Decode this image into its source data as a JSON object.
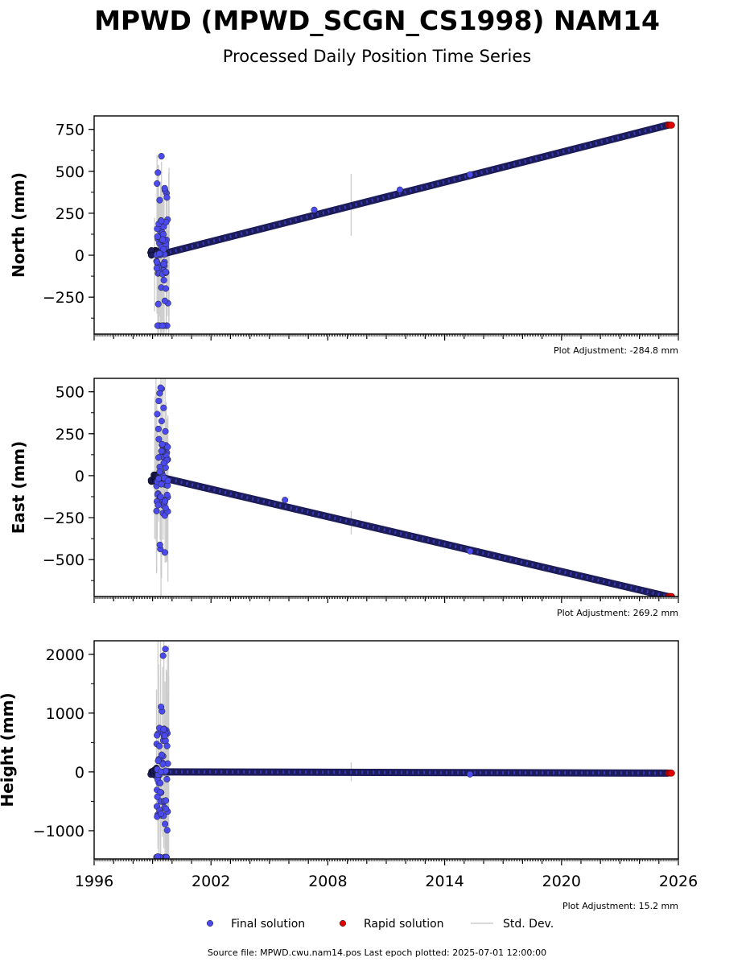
{
  "chart_data": {
    "type": "scatter",
    "title": "MPWD (MPWD_SCGN_CS1998) NAM14",
    "subtitle": "Processed Daily Position Time Series",
    "xlim": [
      1996,
      2026
    ],
    "x_ticks": [
      "1996",
      "2002",
      "2008",
      "2014",
      "2020",
      "2026"
    ],
    "x_tick_values": [
      1996,
      2002,
      2008,
      2014,
      2020,
      2026
    ],
    "panels": [
      {
        "id": "north",
        "ylabel": "North (mm)",
        "ylim": [
          -470,
          830
        ],
        "y_ticks": [
          -250,
          0,
          250,
          500,
          750
        ],
        "y_tick_labels": [
          "−250",
          "0",
          "250",
          "500",
          "750"
        ],
        "plot_adjustment": "Plot Adjustment: -284.8 mm",
        "trend": {
          "start_year": 1999.6,
          "start_value": 10,
          "end_year": 2025.5,
          "end_value": 775
        },
        "early_scatter_range": [
          -420,
          590
        ],
        "outliers": [
          {
            "x": 2015.3,
            "y": 480
          },
          {
            "x": 2007.3,
            "y": 270
          },
          {
            "x": 2011.7,
            "y": 390
          }
        ],
        "stddev_bars": [
          {
            "x": 2009.2,
            "y": 300,
            "half": 185
          }
        ]
      },
      {
        "id": "east",
        "ylabel": "East (mm)",
        "ylim": [
          -720,
          580
        ],
        "y_ticks": [
          -500,
          -250,
          0,
          250,
          500
        ],
        "y_tick_labels": [
          "−500",
          "−250",
          "0",
          "250",
          "500"
        ],
        "plot_adjustment": "Plot Adjustment: 269.2 mm",
        "trend": {
          "start_year": 1999.6,
          "start_value": -15,
          "end_year": 2025.5,
          "end_value": -720
        },
        "early_scatter_range": [
          -480,
          580
        ],
        "outliers": [
          {
            "x": 2005.8,
            "y": -145
          },
          {
            "x": 2015.3,
            "y": -450
          }
        ],
        "stddev_bars": [
          {
            "x": 2009.2,
            "y": -280,
            "half": 70
          }
        ]
      },
      {
        "id": "height",
        "ylabel": "Height (mm)",
        "ylim": [
          -1480,
          2230
        ],
        "y_ticks": [
          -1000,
          0,
          1000,
          2000
        ],
        "y_tick_labels": [
          "−1000",
          "0",
          "1000",
          "2000"
        ],
        "plot_adjustment": "Plot Adjustment: 15.2 mm",
        "trend": {
          "start_year": 1999.6,
          "start_value": 0,
          "end_year": 2025.5,
          "end_value": -20
        },
        "early_scatter_range": [
          -1450,
          2230
        ],
        "outliers": [
          {
            "x": 2015.3,
            "y": -40
          }
        ],
        "stddev_bars": [
          {
            "x": 2009.2,
            "y": 0,
            "half": 160
          }
        ]
      }
    ],
    "series": [
      {
        "name": "Final solution",
        "color": "#4a4aef"
      },
      {
        "name": "Rapid solution",
        "color": "#e00000"
      },
      {
        "name": "Std. Dev.",
        "color": "#cccccc"
      }
    ]
  },
  "footer": {
    "source": "Source file: MPWD.cwu.nam14.pos  Last epoch plotted: 2025-07-01 12:00:00"
  }
}
